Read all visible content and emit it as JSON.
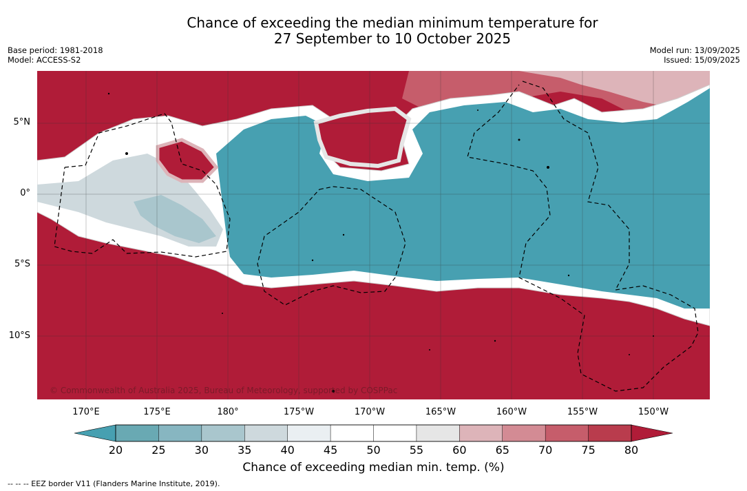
{
  "title_line1": "Chance of exceeding the median minimum temperature for",
  "title_line2": "27 September to 10 October 2025",
  "base_period": "Base period: 1981-2018",
  "model": "Model: ACCESS-S2",
  "model_run": "Model run: 13/09/2025",
  "issued": "Issued: 15/09/2025",
  "lat_labels": [
    "5°N",
    "0°",
    "5°S",
    "10°S"
  ],
  "lon_labels": [
    "170°E",
    "175°E",
    "180°",
    "175°W",
    "170°W",
    "165°W",
    "160°W",
    "155°W",
    "150°W"
  ],
  "copyright": "© Commonwealth of Australia 2025, Bureau of Meteorology, supported by COSPPac",
  "colorbar": {
    "ticks": [
      "20",
      "25",
      "30",
      "35",
      "40",
      "45",
      "50",
      "55",
      "60",
      "65",
      "70",
      "75",
      "80"
    ],
    "colors": [
      "#69a9b3",
      "#87b6c1",
      "#a9c6cd",
      "#ced9dd",
      "#eaeff2",
      "#ffffff",
      "#ffffff",
      "#e6e6e6",
      "#ddb4b9",
      "#d38b94",
      "#c65d6b",
      "#b93c4d"
    ],
    "under_color": "#47a0b1",
    "over_color": "#b01c38",
    "label": "Chance of exceeding median min. temp. (%)"
  },
  "legend_note": "--  --  -- EEZ border V11 (Flanders Marine Institute, 2019)."
}
